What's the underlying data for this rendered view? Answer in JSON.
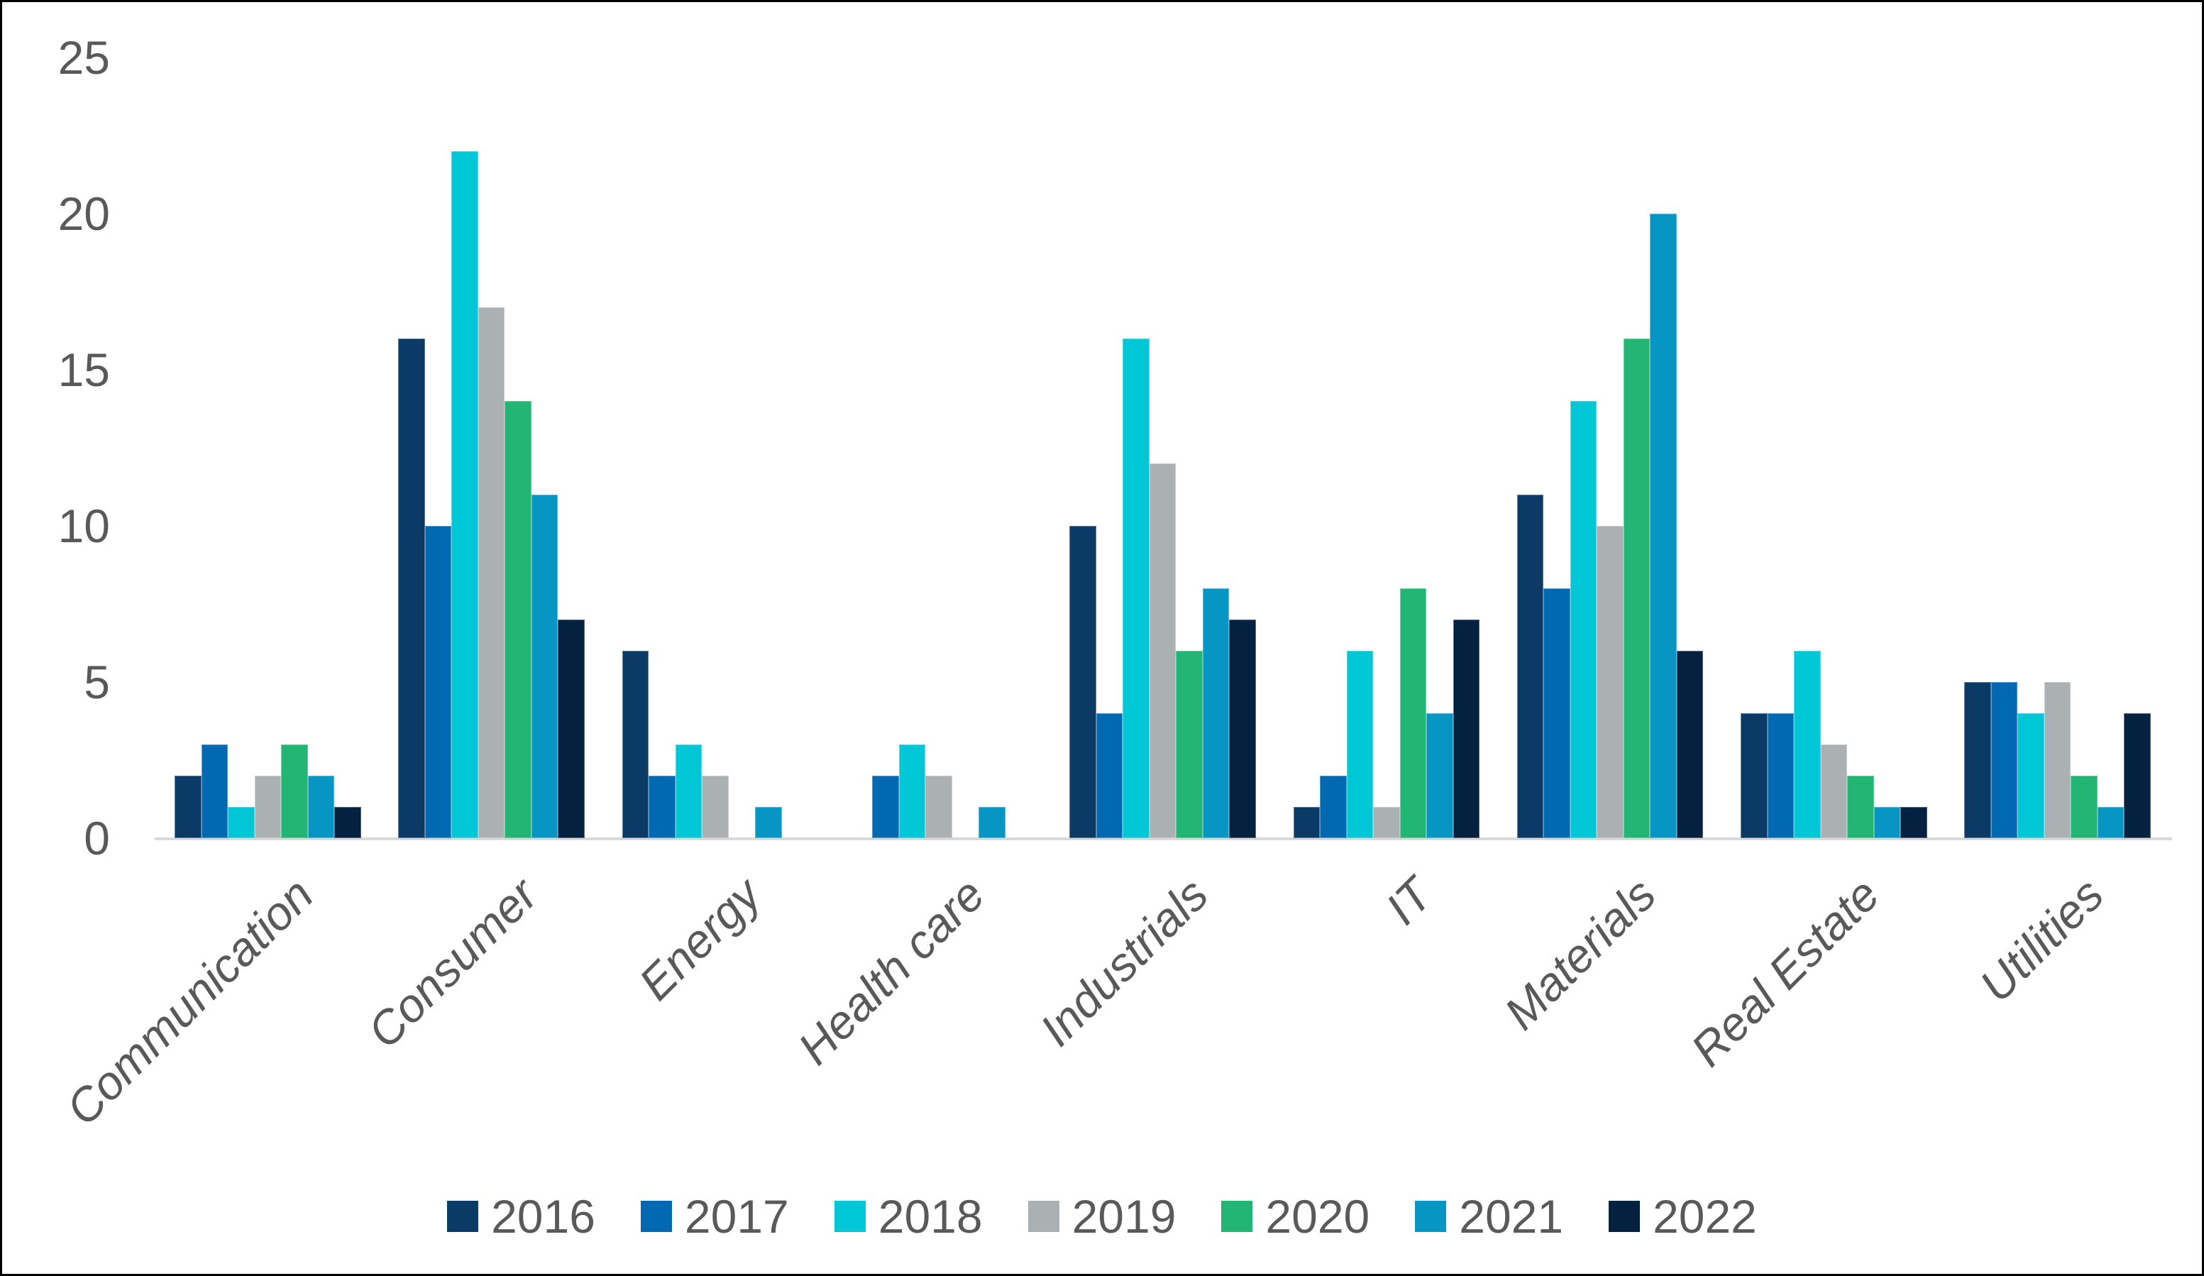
{
  "chart_data": {
    "type": "bar",
    "title": "",
    "categories": [
      "Communication",
      "Consumer",
      "Energy",
      "Health care",
      "Industrials",
      "IT",
      "Materials",
      "Real Estate",
      "Utilities"
    ],
    "series": [
      {
        "name": "2016",
        "color": "#0b3a66",
        "values": [
          2,
          16,
          6,
          0,
          10,
          1,
          11,
          4,
          5
        ]
      },
      {
        "name": "2017",
        "color": "#0069b1",
        "values": [
          3,
          10,
          2,
          2,
          4,
          2,
          8,
          4,
          5
        ]
      },
      {
        "name": "2018",
        "color": "#00c6d5",
        "values": [
          1,
          22,
          3,
          3,
          16,
          6,
          14,
          6,
          4
        ]
      },
      {
        "name": "2019",
        "color": "#abb0b3",
        "values": [
          2,
          17,
          2,
          2,
          12,
          1,
          10,
          3,
          5
        ]
      },
      {
        "name": "2020",
        "color": "#22b573",
        "values": [
          3,
          14,
          0,
          0,
          6,
          8,
          16,
          2,
          2
        ]
      },
      {
        "name": "2021",
        "color": "#0795c4",
        "values": [
          2,
          11,
          1,
          1,
          8,
          4,
          20,
          1,
          1
        ]
      },
      {
        "name": "2022",
        "color": "#04223f",
        "values": [
          1,
          7,
          0,
          0,
          7,
          7,
          6,
          1,
          4
        ]
      }
    ],
    "ylim": [
      0,
      25
    ],
    "yticks": [
      0,
      5,
      10,
      15,
      20,
      25
    ],
    "xlabel": "",
    "ylabel": "",
    "grid": false,
    "legend_position": "bottom"
  },
  "style": {
    "text_color": "#595959",
    "axis_line_color": "#d9d9d9",
    "background": "#ffffff",
    "frame_border": "#000000"
  }
}
